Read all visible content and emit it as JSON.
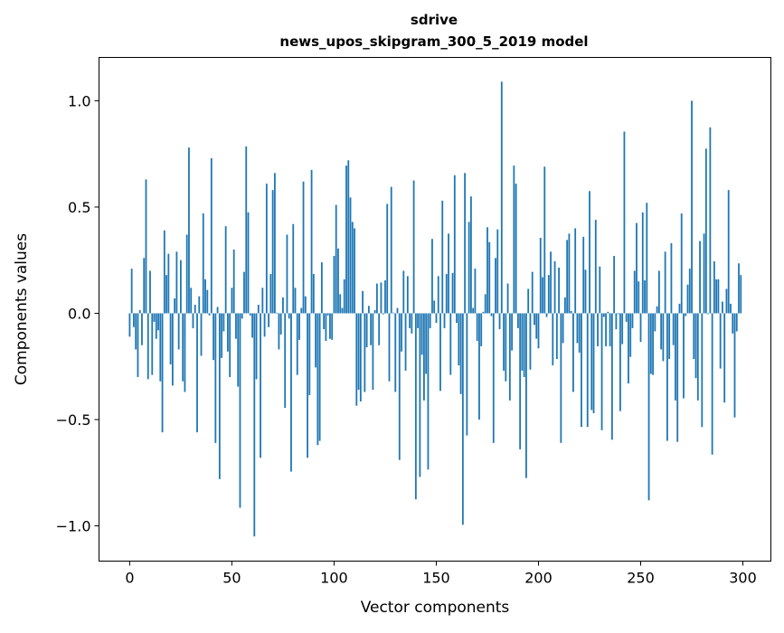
{
  "chart_data": {
    "type": "bar",
    "title": "sdrive",
    "subtitle": "news_upos_skipgram_300_5_2019 model",
    "xlabel": "Vector components",
    "ylabel": "Components values",
    "xlim": [
      -15,
      313.7
    ],
    "ylim": [
      -1.166,
      1.204
    ],
    "grid": false,
    "bar_color": "#1f77b4",
    "bar_width": 0.8,
    "xticks": [
      0,
      50,
      100,
      150,
      200,
      250,
      300
    ],
    "xtick_labels": [
      "0",
      "50",
      "100",
      "150",
      "200",
      "250",
      "300"
    ],
    "yticks": [
      -1.0,
      -0.5,
      0.0,
      0.5,
      1.0
    ],
    "ytick_labels": [
      "−1.0",
      "−0.5",
      "0.0",
      "0.5",
      "1.0"
    ],
    "values": [
      -0.11,
      0.21,
      -0.065,
      -0.17,
      -0.3,
      0.015,
      -0.15,
      0.26,
      0.63,
      -0.31,
      0.2,
      -0.29,
      -0.04,
      -0.12,
      -0.08,
      -0.32,
      -0.56,
      0.39,
      0.18,
      0.28,
      -0.24,
      -0.34,
      0.07,
      0.29,
      -0.17,
      0.25,
      -0.32,
      -0.37,
      0.37,
      0.78,
      0.12,
      -0.07,
      0.04,
      -0.56,
      0.08,
      -0.2,
      0.47,
      0.16,
      0.11,
      -0.01,
      0.73,
      -0.22,
      -0.61,
      0.03,
      -0.78,
      -0.21,
      -0.085,
      0.41,
      -0.18,
      -0.3,
      0.12,
      0.3,
      -0.12,
      -0.345,
      -0.915,
      -0.025,
      0.195,
      0.785,
      0.475,
      -0.01,
      -0.115,
      -1.05,
      -0.31,
      0.04,
      -0.68,
      0.12,
      -0.11,
      0.61,
      -0.065,
      0.185,
      0.58,
      0.66,
      0.003,
      -0.17,
      -0.1,
      0.075,
      -0.445,
      0.37,
      -0.025,
      -0.745,
      0.42,
      0.12,
      -0.29,
      -0.125,
      0.025,
      0.62,
      0.08,
      -0.68,
      -0.385,
      0.675,
      0.185,
      -0.255,
      -0.62,
      -0.6,
      0.24,
      -0.075,
      -0.13,
      -0.01,
      -0.12,
      -0.125,
      0.27,
      0.51,
      0.305,
      0.09,
      0.025,
      0.16,
      0.695,
      0.72,
      0.545,
      0.43,
      0.4,
      -0.435,
      -0.36,
      -0.415,
      0.105,
      -0.37,
      -0.16,
      0.035,
      -0.15,
      -0.36,
      0.015,
      0.14,
      -0.15,
      0.145,
      -0.005,
      0.155,
      0.515,
      -0.32,
      0.595,
      0.003,
      -0.37,
      0.025,
      -0.69,
      -0.18,
      0.2,
      -0.27,
      0.175,
      -0.07,
      -0.095,
      0.625,
      -0.875,
      -0.07,
      -0.77,
      -0.195,
      -0.41,
      -0.285,
      -0.735,
      -0.07,
      0.35,
      0.06,
      -0.045,
      0.175,
      -0.365,
      0.53,
      -0.07,
      0.185,
      0.375,
      -0.29,
      0.19,
      0.65,
      -0.045,
      -0.245,
      -0.38,
      -0.995,
      0.66,
      -0.575,
      0.43,
      0.55,
      0.025,
      0.21,
      -0.13,
      -0.5,
      -0.155,
      0.007,
      0.09,
      0.405,
      0.335,
      -0.013,
      -0.61,
      0.26,
      0.395,
      -0.075,
      1.09,
      -0.27,
      -0.32,
      0.14,
      -0.41,
      -0.175,
      0.695,
      0.61,
      -0.07,
      -0.64,
      -0.27,
      -0.3,
      -0.775,
      0.115,
      -0.265,
      0.195,
      -0.055,
      -0.12,
      -0.165,
      0.355,
      0.17,
      0.69,
      -0.017,
      0.18,
      0.29,
      -0.245,
      0.245,
      -0.215,
      0.215,
      -0.61,
      -0.14,
      0.075,
      0.345,
      0.375,
      0.011,
      -0.37,
      0.4,
      -0.14,
      -0.185,
      -0.535,
      0.36,
      0.205,
      -0.535,
      0.575,
      -0.455,
      -0.47,
      0.44,
      -0.155,
      0.22,
      -0.55,
      -0.017,
      -0.155,
      0.007,
      -0.155,
      -0.595,
      0.27,
      -0.075,
      -0.004,
      -0.46,
      -0.145,
      0.855,
      -0.04,
      -0.33,
      -0.205,
      -0.07,
      0.2,
      0.425,
      0.15,
      -0.135,
      0.475,
      0.155,
      0.52,
      -0.88,
      -0.285,
      -0.29,
      -0.085,
      0.033,
      0.2,
      -0.17,
      -0.225,
      0.29,
      -0.6,
      -0.215,
      0.33,
      -0.15,
      -0.41,
      -0.605,
      0.045,
      0.47,
      -0.4,
      -0.013,
      0.135,
      0.21,
      1.0,
      -0.215,
      -0.305,
      -0.41,
      0.34,
      -0.535,
      0.375,
      0.775,
      -0.004,
      0.875,
      -0.665,
      0.245,
      0.16,
      0.16,
      -0.26,
      0.055,
      -0.42,
      0.115,
      0.58,
      0.045,
      -0.095,
      -0.49,
      -0.085,
      0.235,
      0.18
    ]
  }
}
